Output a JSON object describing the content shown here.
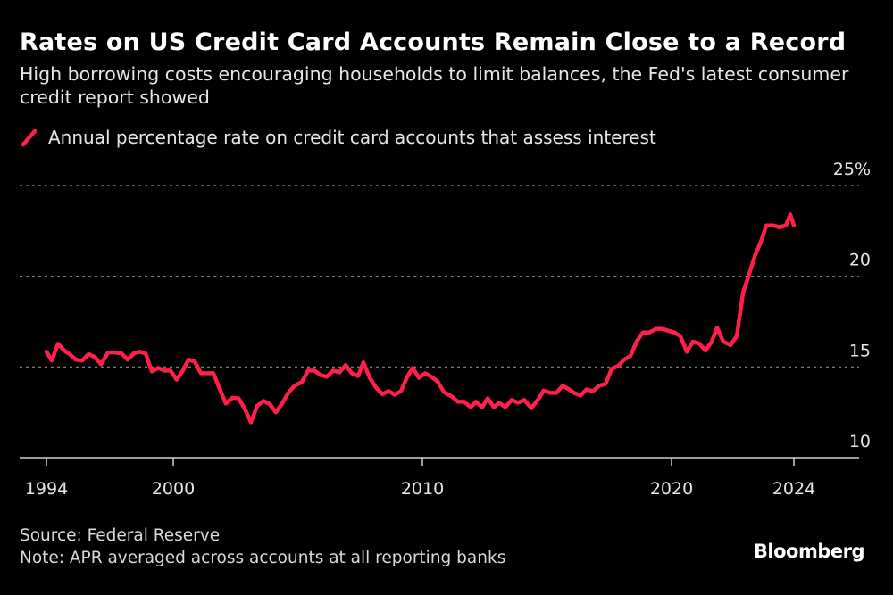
{
  "title": "Rates on US Credit Card Accounts Remain Close to a Record",
  "subtitle": "High borrowing costs encouraging households to limit balances, the Fed's latest consumer credit report showed",
  "legend_label": "Annual percentage rate on credit card accounts that assess interest",
  "footer": {
    "source": "Source: Federal Reserve",
    "note": "Note: APR averaged across accounts at all reporting banks"
  },
  "logo": "Bloomberg",
  "colors": {
    "line": "#ff1f4b",
    "background": "#000000",
    "grid": "#8a8a8a"
  },
  "chart_data": {
    "type": "line",
    "title": "Rates on US Credit Card Accounts Remain Close to a Record",
    "xlabel": "",
    "ylabel": "",
    "xticks": [
      1994,
      2000,
      2010,
      2020,
      2024
    ],
    "yticks": [
      {
        "value": 10,
        "label": "10"
      },
      {
        "value": 15,
        "label": "15"
      },
      {
        "value": 20,
        "label": "20"
      },
      {
        "value": 25,
        "label": "25%"
      }
    ],
    "ylim": [
      10,
      25
    ],
    "grid": "horizontal dotted",
    "legend": "top-left",
    "series": [
      {
        "name": "Annual percentage rate on credit card accounts that assess interest",
        "points": [
          [
            1994.0,
            15.84
          ],
          [
            1994.25,
            15.35
          ],
          [
            1994.55,
            16.28
          ],
          [
            1994.84,
            15.9
          ],
          [
            1995.1,
            15.7
          ],
          [
            1995.39,
            15.4
          ],
          [
            1995.69,
            15.35
          ],
          [
            1995.99,
            15.7
          ],
          [
            1996.28,
            15.55
          ],
          [
            1996.58,
            15.15
          ],
          [
            1996.92,
            15.8
          ],
          [
            1997.21,
            15.8
          ],
          [
            1997.55,
            15.75
          ],
          [
            1997.84,
            15.4
          ],
          [
            1998.14,
            15.75
          ],
          [
            1998.39,
            15.84
          ],
          [
            1998.69,
            15.75
          ],
          [
            1998.99,
            14.75
          ],
          [
            1999.28,
            14.95
          ],
          [
            1999.58,
            14.8
          ],
          [
            1999.87,
            14.8
          ],
          [
            2000.14,
            14.3
          ],
          [
            2000.39,
            14.8
          ],
          [
            2000.61,
            15.4
          ],
          [
            2000.86,
            15.3
          ],
          [
            2001.11,
            14.65
          ],
          [
            2001.36,
            14.65
          ],
          [
            2001.61,
            14.65
          ],
          [
            2001.86,
            13.8
          ],
          [
            2002.11,
            12.98
          ],
          [
            2002.37,
            13.3
          ],
          [
            2002.62,
            13.27
          ],
          [
            2002.87,
            12.7
          ],
          [
            2003.12,
            11.95
          ],
          [
            2003.37,
            12.85
          ],
          [
            2003.62,
            13.13
          ],
          [
            2003.87,
            12.95
          ],
          [
            2004.12,
            12.5
          ],
          [
            2004.37,
            12.98
          ],
          [
            2004.62,
            13.57
          ],
          [
            2004.87,
            13.97
          ],
          [
            2005.16,
            14.16
          ],
          [
            2005.41,
            14.8
          ],
          [
            2005.66,
            14.8
          ],
          [
            2005.91,
            14.56
          ],
          [
            2006.16,
            14.46
          ],
          [
            2006.42,
            14.8
          ],
          [
            2006.67,
            14.7
          ],
          [
            2006.92,
            15.1
          ],
          [
            2007.17,
            14.65
          ],
          [
            2007.42,
            14.5
          ],
          [
            2007.63,
            15.25
          ],
          [
            2007.89,
            14.4
          ],
          [
            2008.14,
            13.86
          ],
          [
            2008.39,
            13.5
          ],
          [
            2008.64,
            13.67
          ],
          [
            2008.89,
            13.47
          ],
          [
            2009.14,
            13.67
          ],
          [
            2009.39,
            14.46
          ],
          [
            2009.61,
            14.95
          ],
          [
            2009.86,
            14.4
          ],
          [
            2010.11,
            14.65
          ],
          [
            2010.36,
            14.46
          ],
          [
            2010.61,
            14.2
          ],
          [
            2010.86,
            13.62
          ],
          [
            2011.18,
            13.37
          ],
          [
            2011.43,
            13.08
          ],
          [
            2011.68,
            13.08
          ],
          [
            2011.94,
            12.78
          ],
          [
            2012.15,
            13.08
          ],
          [
            2012.4,
            12.78
          ],
          [
            2012.62,
            13.27
          ],
          [
            2012.87,
            12.78
          ],
          [
            2013.08,
            13.03
          ],
          [
            2013.33,
            12.78
          ],
          [
            2013.58,
            13.18
          ],
          [
            2013.84,
            13.03
          ],
          [
            2014.09,
            13.18
          ],
          [
            2014.37,
            12.73
          ],
          [
            2014.66,
            13.23
          ],
          [
            2014.87,
            13.7
          ],
          [
            2015.13,
            13.57
          ],
          [
            2015.38,
            13.57
          ],
          [
            2015.63,
            13.97
          ],
          [
            2015.88,
            13.76
          ],
          [
            2016.09,
            13.57
          ],
          [
            2016.34,
            13.42
          ],
          [
            2016.59,
            13.76
          ],
          [
            2016.85,
            13.67
          ],
          [
            2017.1,
            13.97
          ],
          [
            2017.35,
            14.06
          ],
          [
            2017.6,
            14.9
          ],
          [
            2017.85,
            15.05
          ],
          [
            2018.1,
            15.4
          ],
          [
            2018.35,
            15.6
          ],
          [
            2018.6,
            16.4
          ],
          [
            2018.85,
            16.9
          ],
          [
            2019.1,
            16.9
          ],
          [
            2019.39,
            17.1
          ],
          [
            2019.64,
            17.1
          ],
          [
            2019.86,
            17.0
          ],
          [
            2020.09,
            16.9
          ],
          [
            2020.29,
            16.7
          ],
          [
            2020.5,
            15.84
          ],
          [
            2020.7,
            16.4
          ],
          [
            2020.91,
            16.28
          ],
          [
            2021.11,
            15.9
          ],
          [
            2021.31,
            16.38
          ],
          [
            2021.49,
            17.17
          ],
          [
            2021.69,
            16.4
          ],
          [
            2021.93,
            16.2
          ],
          [
            2022.13,
            16.7
          ],
          [
            2022.34,
            19.1
          ],
          [
            2022.51,
            19.98
          ],
          [
            2022.72,
            21.1
          ],
          [
            2022.92,
            21.9
          ],
          [
            2023.1,
            22.8
          ],
          [
            2023.33,
            22.8
          ],
          [
            2023.53,
            22.7
          ],
          [
            2023.74,
            22.8
          ],
          [
            2023.88,
            23.4
          ],
          [
            2024.0,
            22.8
          ]
        ]
      }
    ]
  }
}
